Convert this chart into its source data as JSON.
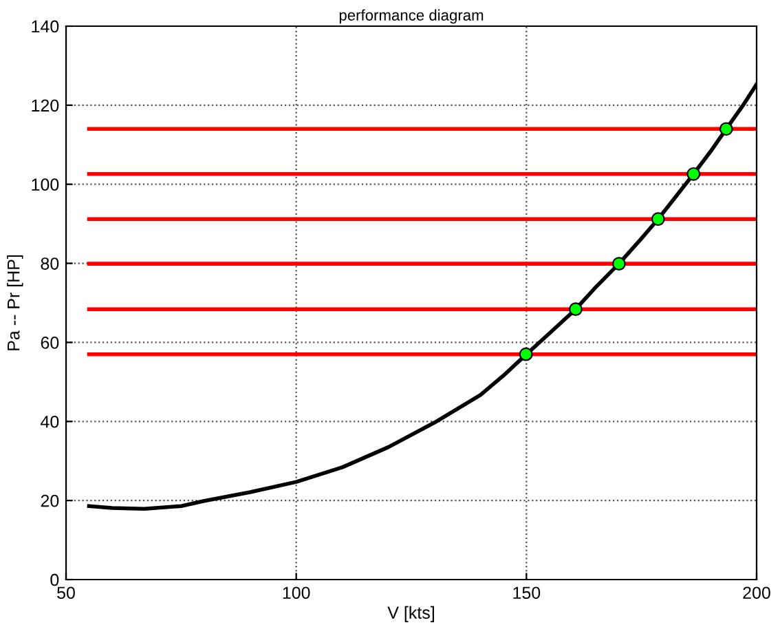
{
  "chart_data": {
    "type": "line",
    "title": "performance diagram",
    "xlabel": "V [kts]",
    "ylabel": "Pa -- Pr [HP]",
    "xlim": [
      50,
      200
    ],
    "xticks": [
      50,
      100,
      150,
      200
    ],
    "ylim": [
      0,
      140
    ],
    "yticks": [
      0,
      20,
      40,
      60,
      80,
      100,
      120,
      140
    ],
    "grid": true,
    "series": [
      {
        "color": "#ff0000",
        "x": [
          55,
          200
        ],
        "values": [
          114.0,
          114.0
        ]
      },
      {
        "color": "#ff0000",
        "x": [
          55,
          200
        ],
        "values": [
          102.6,
          102.6
        ]
      },
      {
        "color": "#ff0000",
        "x": [
          55,
          200
        ],
        "values": [
          91.2,
          91.2
        ]
      },
      {
        "color": "#ff0000",
        "x": [
          55,
          200
        ],
        "values": [
          79.9,
          79.9
        ]
      },
      {
        "color": "#ff0000",
        "x": [
          55,
          200
        ],
        "values": [
          68.4,
          68.4
        ]
      },
      {
        "color": "#ff0000",
        "x": [
          55,
          200
        ],
        "values": [
          57.0,
          57.0
        ]
      },
      {
        "color": "#000000",
        "x": [
          55,
          60,
          67,
          75,
          80,
          90,
          100,
          110,
          120,
          130,
          140,
          145,
          150,
          155,
          160.7,
          165,
          170.1,
          175,
          178.6,
          182,
          186.3,
          190,
          193.4,
          197,
          200
        ],
        "values": [
          18.6,
          18.1,
          17.9,
          18.6,
          19.9,
          22.1,
          24.7,
          28.4,
          33.5,
          39.7,
          46.7,
          51.6,
          57.0,
          62.3,
          68.4,
          73.9,
          79.9,
          86.3,
          91.2,
          96.2,
          102.6,
          108.3,
          114.0,
          119.9,
          125.3
        ]
      },
      {
        "type": "scatter",
        "color": "#00ff00",
        "marker": "circle",
        "x": [
          149.9,
          160.7,
          170.1,
          178.6,
          186.3,
          193.4
        ],
        "values": [
          57.0,
          68.4,
          79.9,
          91.2,
          102.6,
          114.0
        ]
      }
    ]
  }
}
